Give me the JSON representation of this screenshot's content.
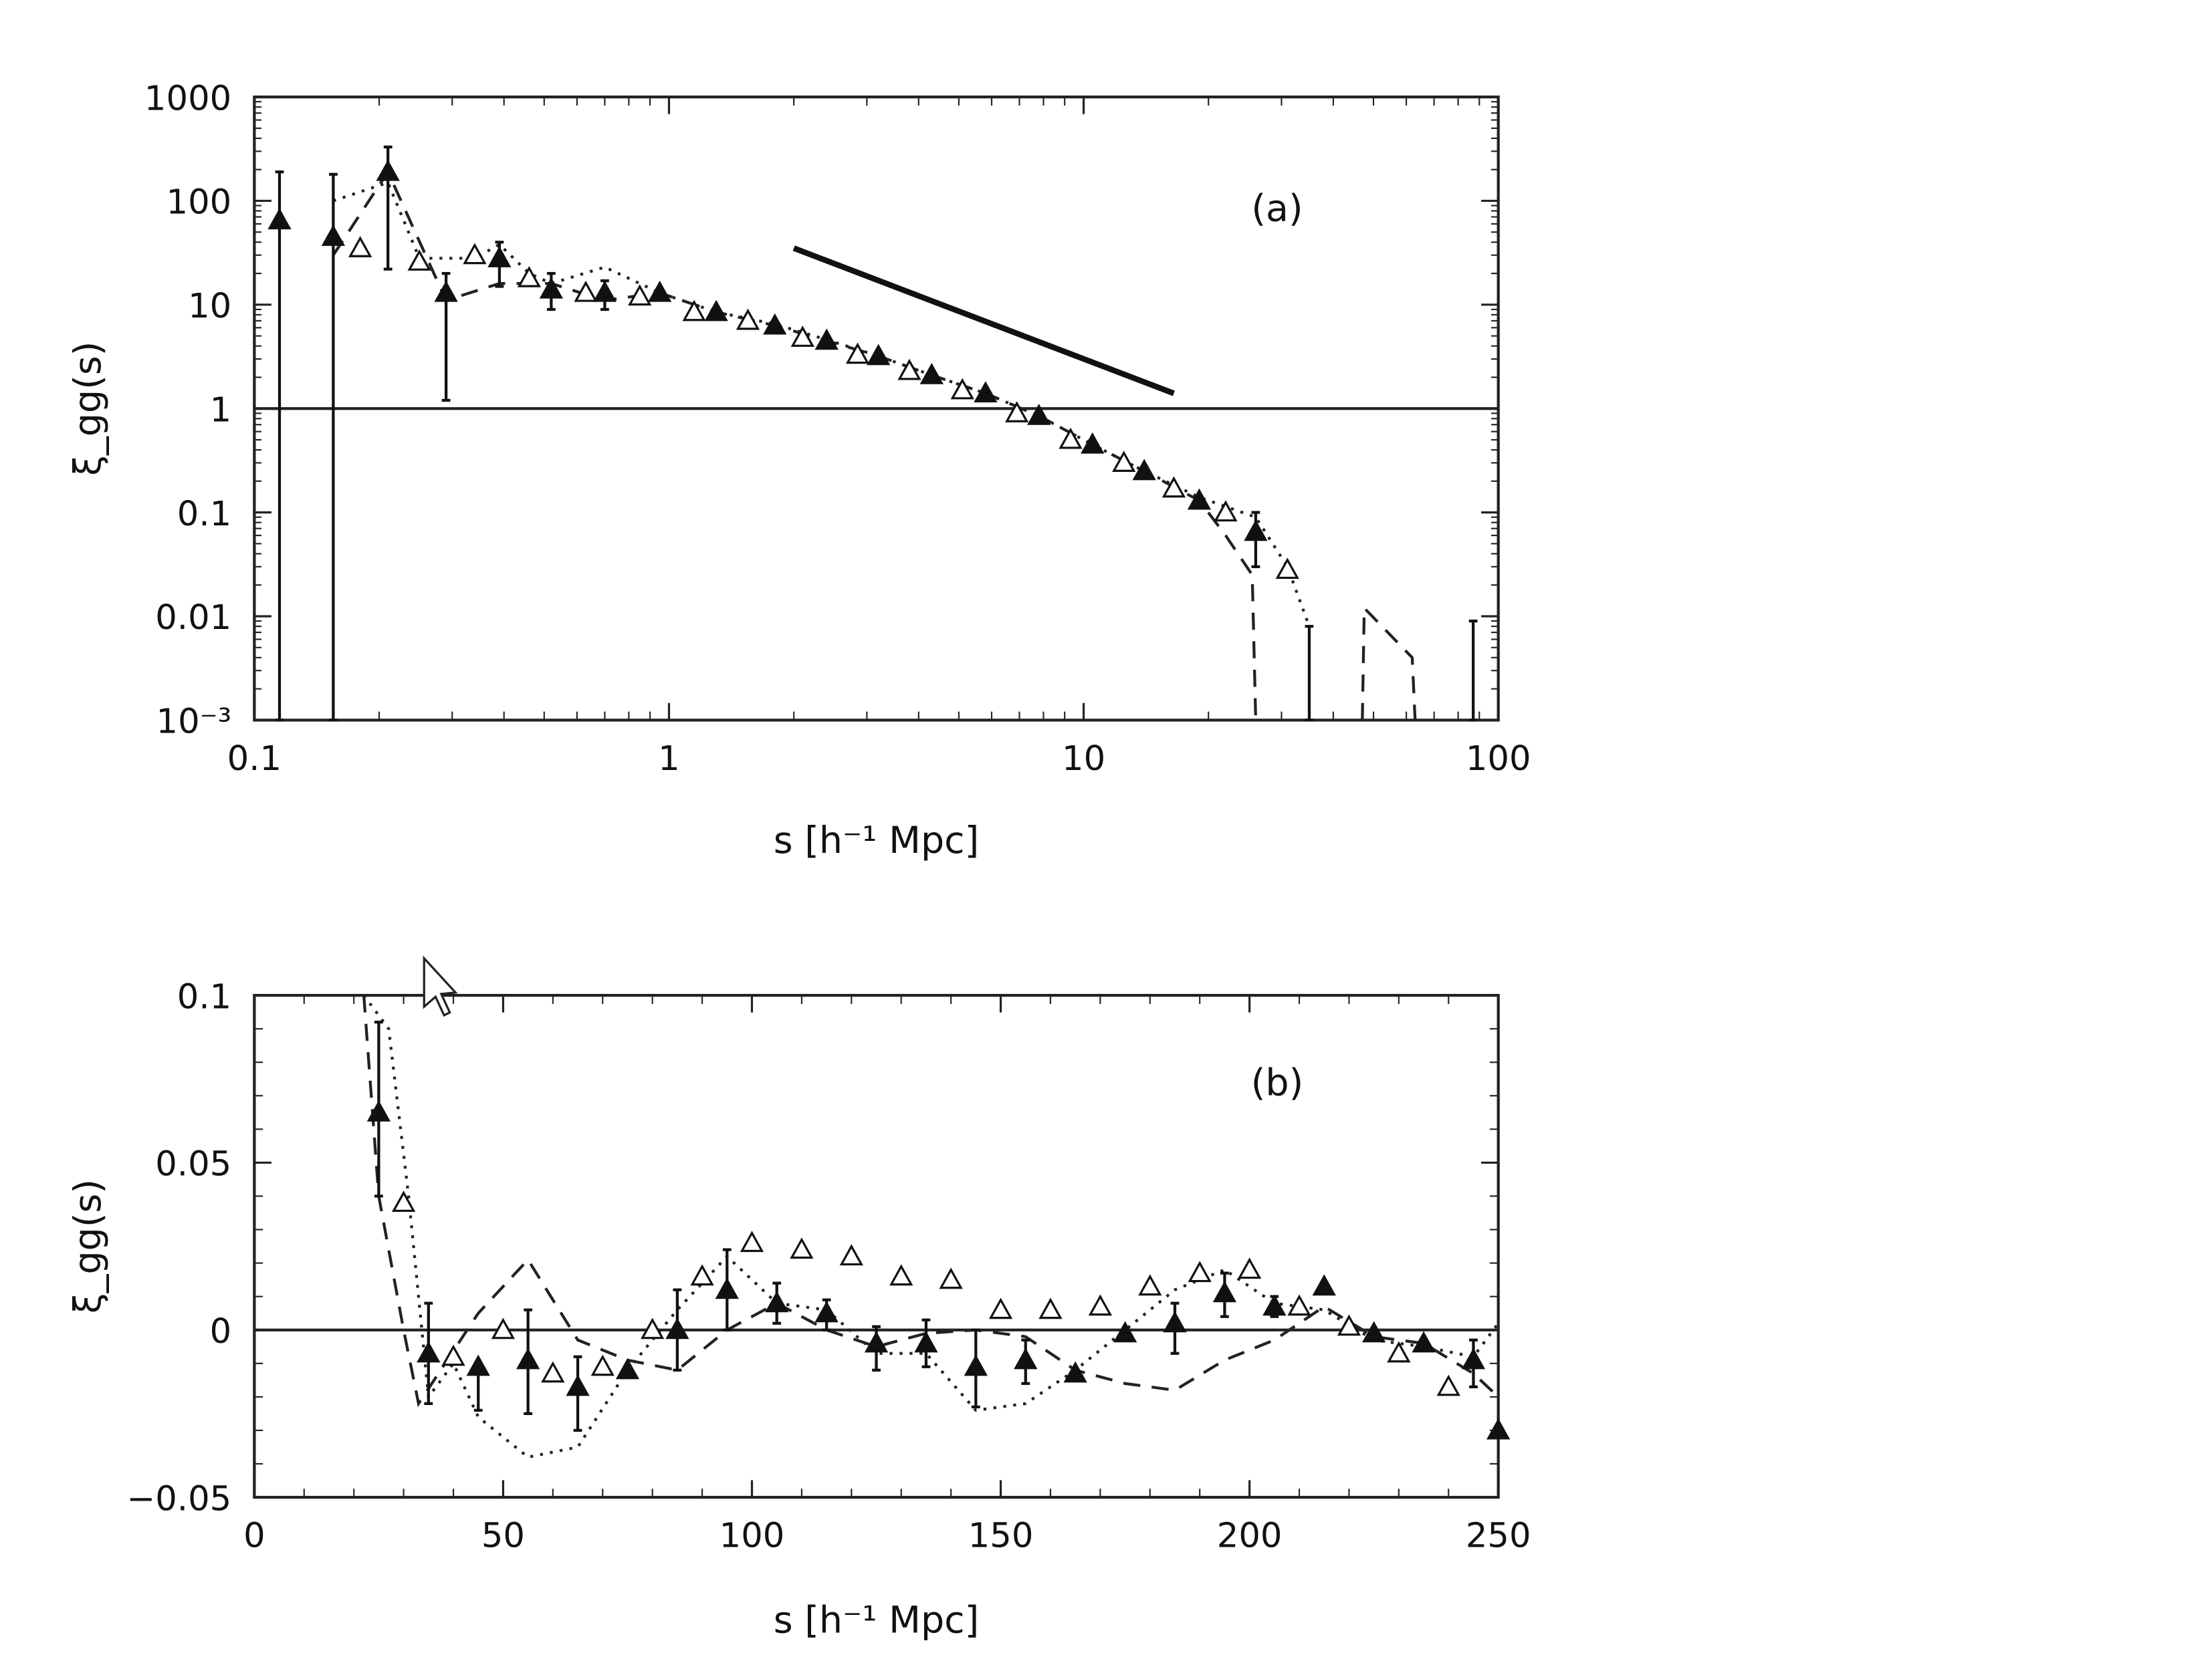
{
  "chart_data": [
    {
      "panel_label": "(a)",
      "type": "scatter",
      "xscale": "log",
      "yscale": "log",
      "xlim": [
        0.1,
        100
      ],
      "ylim": [
        0.001,
        1000
      ],
      "xlabel": "s [h⁻¹ Mpc]",
      "ylabel": "ξ_gg(s)",
      "xticks": [
        {
          "v": 0.1,
          "label": "0.1"
        },
        {
          "v": 1,
          "label": "1"
        },
        {
          "v": 10,
          "label": "10"
        },
        {
          "v": 100,
          "label": "100"
        }
      ],
      "yticks": [
        {
          "v": 1000,
          "label": "1000"
        },
        {
          "v": 100,
          "label": "100"
        },
        {
          "v": 10,
          "label": "10"
        },
        {
          "v": 1,
          "label": "1"
        },
        {
          "v": 0.1,
          "label": "0.1"
        },
        {
          "v": 0.01,
          "label": "0.01"
        },
        {
          "v": 0.001,
          "label": "10⁻³"
        }
      ],
      "reference_line_y": 1,
      "power_law_line": [
        [
          2,
          35
        ],
        [
          16.5,
          1.4
        ]
      ],
      "filled_triangles": [
        {
          "x": 0.115,
          "y": 65,
          "lo": 0.001,
          "hi": 190
        },
        {
          "x": 0.155,
          "y": 45,
          "lo": 0.001,
          "hi": 180
        },
        {
          "x": 0.21,
          "y": 190,
          "lo": 22,
          "hi": 330
        },
        {
          "x": 0.29,
          "y": 13,
          "lo": 1.2,
          "hi": 20
        },
        {
          "x": 0.39,
          "y": 28,
          "lo": 15,
          "hi": 40
        },
        {
          "x": 0.52,
          "y": 14,
          "lo": 9,
          "hi": 20
        },
        {
          "x": 0.7,
          "y": 13,
          "lo": 9,
          "hi": 17
        },
        {
          "x": 0.95,
          "y": 13
        },
        {
          "x": 1.3,
          "y": 8.5
        },
        {
          "x": 1.8,
          "y": 6.3
        },
        {
          "x": 2.4,
          "y": 4.5
        },
        {
          "x": 3.2,
          "y": 3.2
        },
        {
          "x": 4.3,
          "y": 2.1
        },
        {
          "x": 5.8,
          "y": 1.4
        },
        {
          "x": 7.8,
          "y": 0.85
        },
        {
          "x": 10.5,
          "y": 0.45
        },
        {
          "x": 14,
          "y": 0.25
        },
        {
          "x": 19,
          "y": 0.13
        },
        {
          "x": 26,
          "y": 0.065,
          "lo": 0.03,
          "hi": 0.1
        }
      ],
      "upper_error_bars": [
        {
          "x": 35,
          "lo": 0.001,
          "hi": 0.008
        },
        {
          "x": 87,
          "lo": 0.001,
          "hi": 0.009
        }
      ],
      "open_triangles": [
        {
          "x": 0.18,
          "y": 35
        },
        {
          "x": 0.25,
          "y": 26
        },
        {
          "x": 0.34,
          "y": 30
        },
        {
          "x": 0.46,
          "y": 18
        },
        {
          "x": 0.63,
          "y": 13
        },
        {
          "x": 0.85,
          "y": 12
        },
        {
          "x": 1.15,
          "y": 8.5
        },
        {
          "x": 1.55,
          "y": 7
        },
        {
          "x": 2.1,
          "y": 4.8
        },
        {
          "x": 2.85,
          "y": 3.3
        },
        {
          "x": 3.8,
          "y": 2.3
        },
        {
          "x": 5.1,
          "y": 1.5
        },
        {
          "x": 6.9,
          "y": 0.9
        },
        {
          "x": 9.3,
          "y": 0.5
        },
        {
          "x": 12.5,
          "y": 0.3
        },
        {
          "x": 16.5,
          "y": 0.17
        },
        {
          "x": 22,
          "y": 0.1
        },
        {
          "x": 31,
          "y": 0.028
        }
      ],
      "dotted_line": [
        [
          0.155,
          100
        ],
        [
          0.21,
          150
        ],
        [
          0.25,
          28
        ],
        [
          0.34,
          28
        ],
        [
          0.39,
          38
        ],
        [
          0.46,
          20
        ],
        [
          0.52,
          16
        ],
        [
          0.7,
          23
        ],
        [
          0.95,
          13
        ],
        [
          1.3,
          8.5
        ],
        [
          1.8,
          6.5
        ],
        [
          2.4,
          4.6
        ],
        [
          3.2,
          3.2
        ],
        [
          4.3,
          2.1
        ],
        [
          5.8,
          1.4
        ],
        [
          7.8,
          0.85
        ],
        [
          10.5,
          0.45
        ],
        [
          14,
          0.25
        ],
        [
          19,
          0.14
        ],
        [
          26,
          0.09
        ],
        [
          31,
          0.03
        ],
        [
          35,
          0.008
        ]
      ],
      "dashed_line": [
        [
          0.155,
          30
        ],
        [
          0.21,
          190
        ],
        [
          0.29,
          11
        ],
        [
          0.39,
          16
        ],
        [
          0.52,
          16
        ],
        [
          0.7,
          11
        ],
        [
          0.95,
          13
        ],
        [
          1.3,
          8.5
        ],
        [
          1.8,
          6.3
        ],
        [
          2.4,
          4.5
        ],
        [
          3.2,
          3.2
        ],
        [
          4.3,
          2.1
        ],
        [
          5.8,
          1.4
        ],
        [
          7.8,
          0.85
        ],
        [
          10.5,
          0.45
        ],
        [
          14,
          0.25
        ],
        [
          19,
          0.13
        ],
        [
          22,
          0.06
        ],
        [
          25.5,
          0.025
        ],
        [
          26,
          0.001
        ]
      ],
      "dashed_line_2": [
        [
          47,
          0.001
        ],
        [
          47.5,
          0.012
        ],
        [
          62,
          0.004
        ],
        [
          63,
          0.001
        ]
      ]
    },
    {
      "panel_label": "(b)",
      "type": "scatter",
      "xscale": "linear",
      "yscale": "linear",
      "xlim": [
        0,
        250
      ],
      "ylim": [
        -0.05,
        0.1
      ],
      "xlabel": "s [h⁻¹ Mpc]",
      "ylabel": "ξ_gg(s)",
      "xticks": [
        {
          "v": 0,
          "label": "0"
        },
        {
          "v": 50,
          "label": "50"
        },
        {
          "v": 100,
          "label": "100"
        },
        {
          "v": 150,
          "label": "150"
        },
        {
          "v": 200,
          "label": "200"
        },
        {
          "v": 250,
          "label": "250"
        }
      ],
      "yticks": [
        {
          "v": 0.1,
          "label": "0.1"
        },
        {
          "v": 0.05,
          "label": "0.05"
        },
        {
          "v": 0,
          "label": "0"
        },
        {
          "v": -0.05,
          "label": "−0.05"
        }
      ],
      "reference_line_y": 0,
      "filled_triangles": [
        {
          "x": 25,
          "y": 0.065,
          "lo": 0.04,
          "hi": 0.092
        },
        {
          "x": 35,
          "y": -0.007,
          "lo": -0.022,
          "hi": 0.008
        },
        {
          "x": 45,
          "y": -0.011,
          "lo": -0.024,
          "hi": -0.011
        },
        {
          "x": 55,
          "y": -0.009,
          "lo": -0.025,
          "hi": 0.006
        },
        {
          "x": 65,
          "y": -0.017,
          "lo": -0.03,
          "hi": -0.008
        },
        {
          "x": 75,
          "y": -0.012
        },
        {
          "x": 85,
          "y": 0,
          "lo": -0.012,
          "hi": 0.012
        },
        {
          "x": 95,
          "y": 0.012,
          "lo": 0,
          "hi": 0.024
        },
        {
          "x": 105,
          "y": 0.008,
          "lo": 0.002,
          "hi": 0.014
        },
        {
          "x": 115,
          "y": 0.005,
          "lo": 0,
          "hi": 0.009
        },
        {
          "x": 125,
          "y": -0.004,
          "lo": -0.012,
          "hi": 0.001
        },
        {
          "x": 135,
          "y": -0.004,
          "lo": -0.011,
          "hi": 0.003
        },
        {
          "x": 145,
          "y": -0.011,
          "lo": -0.023,
          "hi": 0
        },
        {
          "x": 155,
          "y": -0.009,
          "lo": -0.016,
          "hi": -0.003
        },
        {
          "x": 165,
          "y": -0.013
        },
        {
          "x": 175,
          "y": -0.001
        },
        {
          "x": 185,
          "y": 0.002,
          "lo": -0.007,
          "hi": 0.008
        },
        {
          "x": 195,
          "y": 0.011,
          "lo": 0.004,
          "hi": 0.017
        },
        {
          "x": 205,
          "y": 0.007,
          "lo": 0.004,
          "hi": 0.01
        },
        {
          "x": 215,
          "y": 0.013
        },
        {
          "x": 225,
          "y": -0.001
        },
        {
          "x": 235,
          "y": -0.004
        },
        {
          "x": 245,
          "y": -0.009,
          "lo": -0.017,
          "hi": -0.003
        },
        {
          "x": 250,
          "y": -0.03
        }
      ],
      "open_triangles": [
        {
          "x": 30,
          "y": 0.038
        },
        {
          "x": 40,
          "y": -0.008
        },
        {
          "x": 50,
          "y": 0
        },
        {
          "x": 60,
          "y": -0.013
        },
        {
          "x": 70,
          "y": -0.011
        },
        {
          "x": 80,
          "y": 0
        },
        {
          "x": 90,
          "y": 0.016
        },
        {
          "x": 100,
          "y": 0.026
        },
        {
          "x": 110,
          "y": 0.024
        },
        {
          "x": 120,
          "y": 0.022
        },
        {
          "x": 130,
          "y": 0.016
        },
        {
          "x": 140,
          "y": 0.015
        },
        {
          "x": 150,
          "y": 0.006
        },
        {
          "x": 160,
          "y": 0.006
        },
        {
          "x": 170,
          "y": 0.007
        },
        {
          "x": 180,
          "y": 0.013
        },
        {
          "x": 190,
          "y": 0.017
        },
        {
          "x": 200,
          "y": 0.018
        },
        {
          "x": 210,
          "y": 0.007
        },
        {
          "x": 220,
          "y": 0.001
        },
        {
          "x": 230,
          "y": -0.007
        },
        {
          "x": 240,
          "y": -0.017
        }
      ],
      "dotted_line": [
        [
          22,
          0.1
        ],
        [
          27,
          0.09
        ],
        [
          31,
          0.04
        ],
        [
          35,
          -0.02
        ],
        [
          40,
          -0.01
        ],
        [
          45,
          -0.026
        ],
        [
          55,
          -0.038
        ],
        [
          65,
          -0.035
        ],
        [
          75,
          -0.012
        ],
        [
          85,
          0.006
        ],
        [
          95,
          0.022
        ],
        [
          105,
          0.008
        ],
        [
          115,
          0.006
        ],
        [
          125,
          -0.007
        ],
        [
          135,
          -0.007
        ],
        [
          145,
          -0.024
        ],
        [
          155,
          -0.022
        ],
        [
          165,
          -0.012
        ],
        [
          175,
          0
        ],
        [
          185,
          0.012
        ],
        [
          195,
          0.018
        ],
        [
          205,
          0.008
        ],
        [
          215,
          0.006
        ],
        [
          225,
          -0.003
        ],
        [
          235,
          -0.005
        ],
        [
          245,
          -0.008
        ],
        [
          250,
          0.002
        ]
      ],
      "dashed_line": [
        [
          22,
          0.1
        ],
        [
          25,
          0.04
        ],
        [
          30,
          0
        ],
        [
          33,
          -0.022
        ],
        [
          45,
          0.005
        ],
        [
          55,
          0.021
        ],
        [
          65,
          -0.003
        ],
        [
          75,
          -0.009
        ],
        [
          85,
          -0.012
        ],
        [
          95,
          0
        ],
        [
          105,
          0.008
        ],
        [
          115,
          0
        ],
        [
          125,
          -0.005
        ],
        [
          135,
          -0.001
        ],
        [
          145,
          0
        ],
        [
          155,
          -0.002
        ],
        [
          165,
          -0.012
        ],
        [
          175,
          -0.016
        ],
        [
          185,
          -0.018
        ],
        [
          195,
          -0.009
        ],
        [
          205,
          -0.003
        ],
        [
          215,
          0.007
        ],
        [
          225,
          -0.002
        ],
        [
          235,
          -0.004
        ],
        [
          245,
          -0.013
        ],
        [
          250,
          -0.02
        ]
      ]
    }
  ]
}
